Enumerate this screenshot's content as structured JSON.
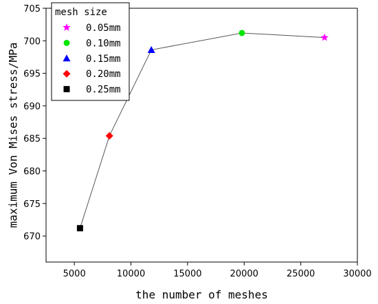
{
  "chart_data": {
    "type": "scatter",
    "xlabel": "the number of meshes",
    "ylabel": "maximum Von Mises stress/MPa",
    "xlim": [
      2500,
      30000
    ],
    "ylim": [
      666,
      705
    ],
    "x_ticks": [
      5000,
      10000,
      15000,
      20000,
      25000,
      30000
    ],
    "y_ticks": [
      670,
      675,
      680,
      685,
      690,
      695,
      700,
      705
    ],
    "grid": false,
    "connecting_line": true,
    "legend": {
      "title": "mesh size",
      "placement": "top-left"
    },
    "series": [
      {
        "name": "0.05mm",
        "x": [
          27100
        ],
        "y": [
          700.5
        ],
        "marker": "star",
        "color": "#ff00ff"
      },
      {
        "name": "0.10mm",
        "x": [
          19800
        ],
        "y": [
          701.2
        ],
        "marker": "circle",
        "color": "#00e600"
      },
      {
        "name": "0.15mm",
        "x": [
          11800
        ],
        "y": [
          698.6
        ],
        "marker": "triangle",
        "color": "#0000ff"
      },
      {
        "name": "0.20mm",
        "x": [
          8100
        ],
        "y": [
          685.4
        ],
        "marker": "diamond",
        "color": "#ff0000"
      },
      {
        "name": "0.25mm",
        "x": [
          5500
        ],
        "y": [
          671.2
        ],
        "marker": "square",
        "color": "#000000"
      }
    ]
  }
}
